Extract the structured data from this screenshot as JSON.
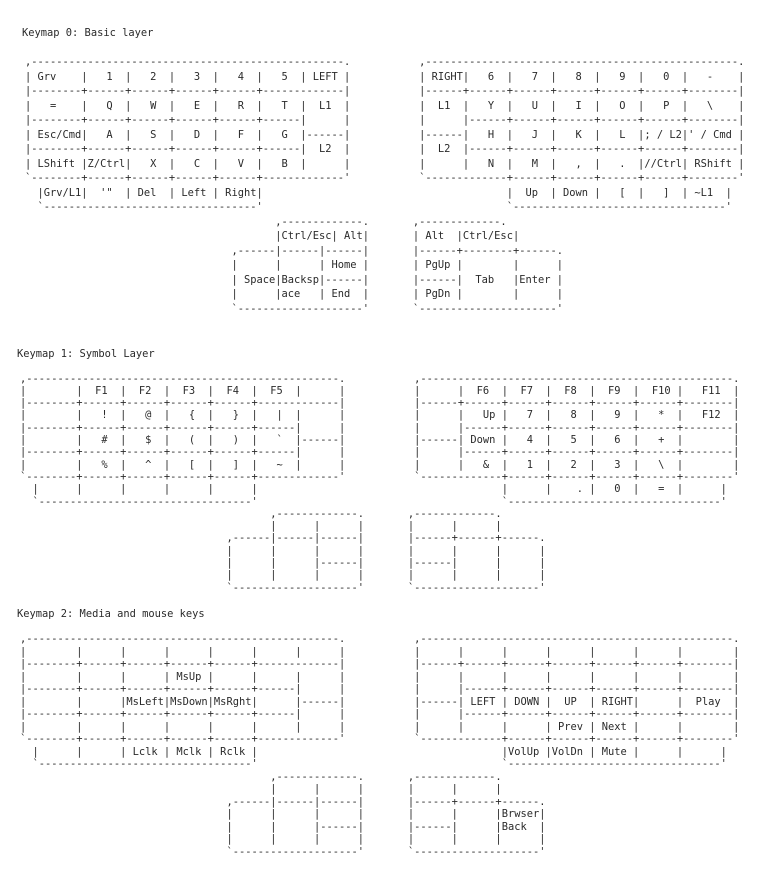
{
  "layers": [
    {
      "title": "Keymap 0: Basic layer",
      "lines": [
        ",--------------------------------------------------.           ,--------------------------------------------------.",
        "| Grv    |   1  |   2  |   3  |   4  |   5  | LEFT |           | RIGHT|   6  |   7  |   8  |   9  |   0  |   -    |",
        "|--------+------+------+------+------+-------------|           |------+------+------+------+------+------+--------|",
        "|   =    |   Q  |   W  |   E  |   R  |   T  |  L1  |           |  L1  |   Y  |   U  |   I  |   O  |   P  |   \\    |",
        "|--------+------+------+------+------+------|      |           |      |------+------+------+------+------+--------|",
        "| Esc/Cmd|   A  |   S  |   D  |   F  |   G  |------|           |------|   H  |   J  |   K  |   L  |; / L2|' / Cmd |",
        "|--------+------+------+------+------+------|  L2  |           |  L2  |------+------+------+------+------+--------|",
        "| LShift |Z/Ctrl|   X  |   C  |   V  |   B  |      |           |      |   N  |   M  |   ,  |   .  |//Ctrl| RShift |",
        "`--------+------+------+------+------+-------------'           `-------------+------+------+------+------+--------'",
        "  |Grv/L1|  '\"  | Del  | Left | Right|                                       |  Up  | Down |   [  |   ]  | ~L1  |",
        "  `----------------------------------'                                       `----------------------------------'",
        "                                        ,-------------.       ,-------------.",
        "                                        |Ctrl/Esc| Alt|       | Alt  |Ctrl/Esc|",
        "                                 ,------|------|------|       |------+--------+------.",
        "                                 |      |      | Home |       | PgUp |        |      |",
        "                                 | Space|Backsp|------|       |------|  Tab   |Enter |",
        "                                 |      |ace   | End  |       | PgDn |        |      |",
        "                                 `--------------------'       `----------------------'"
      ]
    },
    {
      "title": "Keymap 1: Symbol Layer",
      "lines": [
        ",--------------------------------------------------.           ,--------------------------------------------------.",
        "|        |  F1  |  F2  |  F3  |  F4  |  F5  |      |           |      |  F6  |  F7  |  F8  |  F9  |  F10 |   F11  |",
        "|--------+------+------+------+------+-------------|           |------+------+------+------+------+------+--------|",
        "|        |   !  |   @  |   {  |   }  |   |  |      |           |      |   Up |   7  |   8  |   9  |   *  |   F12  |",
        "|--------+------+------+------+------+------|      |           |      |------+------+------+------+------+--------|",
        "|        |   #  |   $  |   (  |   )  |   `  |------|           |------| Down |   4  |   5  |   6  |   +  |        |",
        "|--------+------+------+------+------+------|      |           |      |------+------+------+------+------+--------|",
        "|        |   %  |   ^  |   [  |   ]  |   ~  |      |           |      |   &  |   1  |   2  |   3  |   \\  |        |",
        "`--------+------+------+------+------+-------------'           `-------------+------+------+------+------+--------'",
        "  |      |      |      |      |      |                                       |      |    . |   0  |   =  |      |",
        "  `----------------------------------'                                       `----------------------------------'",
        "                                        ,-------------.       ,-------------.",
        "                                        |      |      |       |      |      |",
        "                                 ,------|------|------|       |------+------+------.",
        "                                 |      |      |      |       |      |      |      |",
        "                                 |      |      |------|       |------|      |      |",
        "                                 |      |      |      |       |      |      |      |",
        "                                 `--------------------'       `--------------------'"
      ]
    },
    {
      "title": "Keymap 2: Media and mouse keys",
      "lines": [
        ",--------------------------------------------------.           ,--------------------------------------------------.",
        "|        |      |      |      |      |      |      |           |      |      |      |      |      |      |        |",
        "|--------+------+------+------+------+-------------|           |------+------+------+------+------+------+--------|",
        "|        |      |      | MsUp |      |      |      |           |      |      |      |      |      |      |        |",
        "|--------+------+------+------+------+------|      |           |      |------+------+------+------+------+--------|",
        "|        |      |MsLeft|MsDown|MsRght|      |------|           |------| LEFT | DOWN |  UP  | RIGHT|      |  Play  |",
        "|--------+------+------+------+------+------|      |           |      |------+------+------+------+------+--------|",
        "|        |      |      |      |      |      |      |           |      |      |      | Prev | Next |      |        |",
        "`--------+------+------+------+------+-------------'           `-------------+------+------+------+------+--------'",
        "  |      |      | Lclk | Mclk | Rclk |                                       |VolUp |VolDn | Mute |      |      |",
        "  `----------------------------------'                                       `----------------------------------'",
        "                                        ,-------------.       ,-------------.",
        "                                        |      |      |       |      |      |",
        "                                 ,------|------|------|       |------+------+------.",
        "                                 |      |      |      |       |      |      |Brwser|",
        "                                 |      |      |------|       |------|      |Back  |",
        "                                 |      |      |      |       |      |      |      |",
        "                                 `--------------------'       `--------------------'"
      ]
    }
  ]
}
